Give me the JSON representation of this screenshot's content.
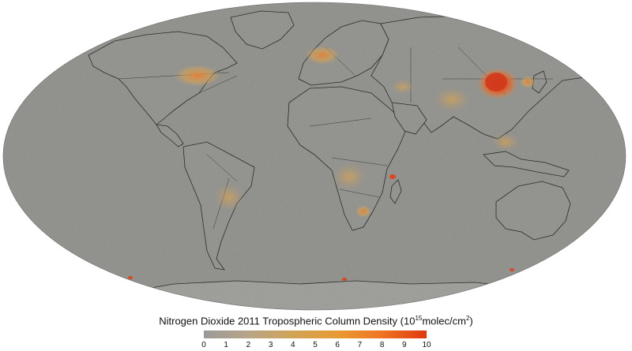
{
  "map": {
    "projection": "mollweide",
    "ocean_color": "#8c8c88",
    "coast_color": "#1a1a1a",
    "hotspot_scale": [
      "#8e8e8a",
      "#b49a6a",
      "#d8a048",
      "#ec8a2a",
      "#e85818",
      "#d42a08"
    ]
  },
  "caption": {
    "prefix": "Nitrogen Dioxide 2011 Tropospheric Column Density (10",
    "exponent": "15",
    "unit_part": "molec/cm",
    "unit_exponent": "2",
    "suffix": ")"
  },
  "colorbar": {
    "min": 0,
    "max": 10,
    "colors": [
      "#9a9a9a",
      "#b8a486",
      "#d0a456",
      "#e89a34",
      "#ef7422",
      "#e0380e"
    ],
    "ticks": [
      "0",
      "1",
      "2",
      "3",
      "4",
      "5",
      "6",
      "7",
      "8",
      "9",
      "10"
    ]
  }
}
